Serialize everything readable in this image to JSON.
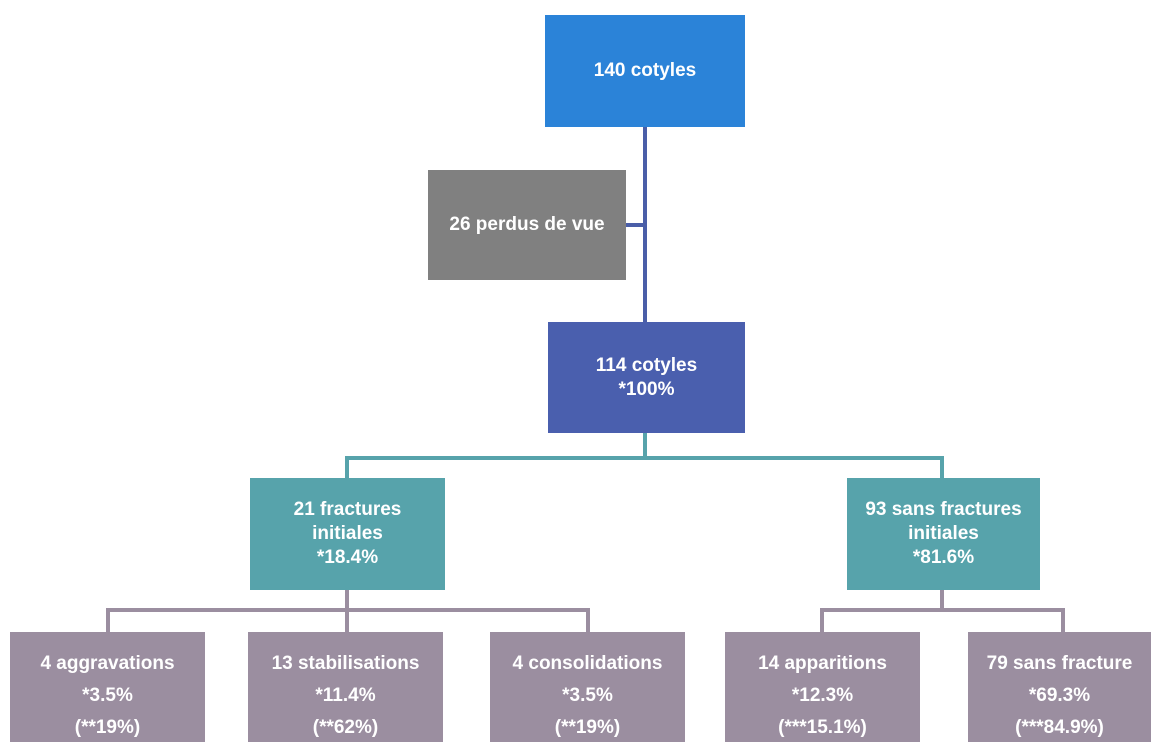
{
  "nodes": [
    {
      "lines": [
        "140 cotyles"
      ]
    },
    {
      "lines": [
        "26 perdus de vue"
      ]
    },
    {
      "lines": [
        "114 cotyles",
        "*100%"
      ]
    },
    {
      "lines": [
        "21 fractures",
        "initiales",
        "*18.4%"
      ]
    },
    {
      "lines": [
        "93 sans fractures",
        "initiales",
        "*81.6%"
      ]
    },
    {
      "lines": [
        "4 aggravations",
        "*3.5%",
        "(**19%)"
      ]
    },
    {
      "lines": [
        "13 stabilisations",
        "*11.4%",
        "(**62%)"
      ]
    },
    {
      "lines": [
        "4 consolidations",
        "*3.5%",
        "(**19%)"
      ]
    },
    {
      "lines": [
        "14 apparitions",
        "*12.3%",
        "(***15.1%)"
      ]
    },
    {
      "lines": [
        "79 sans fracture",
        "*69.3%",
        "(***84.9%)"
      ]
    }
  ]
}
